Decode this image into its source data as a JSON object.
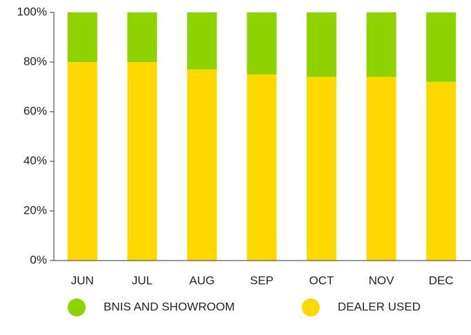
{
  "chart_data": {
    "type": "stacked_bar",
    "categories": [
      "JUN",
      "JUL",
      "AUG",
      "SEP",
      "OCT",
      "NOV",
      "DEC"
    ],
    "series": [
      {
        "name": "BNIS AND SHOWROOM",
        "color": "#8ed300",
        "values": [
          20,
          20,
          23,
          25,
          26,
          26,
          28
        ]
      },
      {
        "name": "DEALER USED",
        "color": "#ffd800",
        "values": [
          80,
          80,
          77,
          75,
          74,
          74,
          72
        ]
      }
    ],
    "ylim": [
      0,
      100
    ],
    "yticks": [
      {
        "value": 0,
        "label": "0%"
      },
      {
        "value": 20,
        "label": "20%"
      },
      {
        "value": 40,
        "label": "40%"
      },
      {
        "value": 60,
        "label": "60%"
      },
      {
        "value": 80,
        "label": "80%"
      },
      {
        "value": 100,
        "label": "100%"
      }
    ],
    "legend": "bottom"
  }
}
